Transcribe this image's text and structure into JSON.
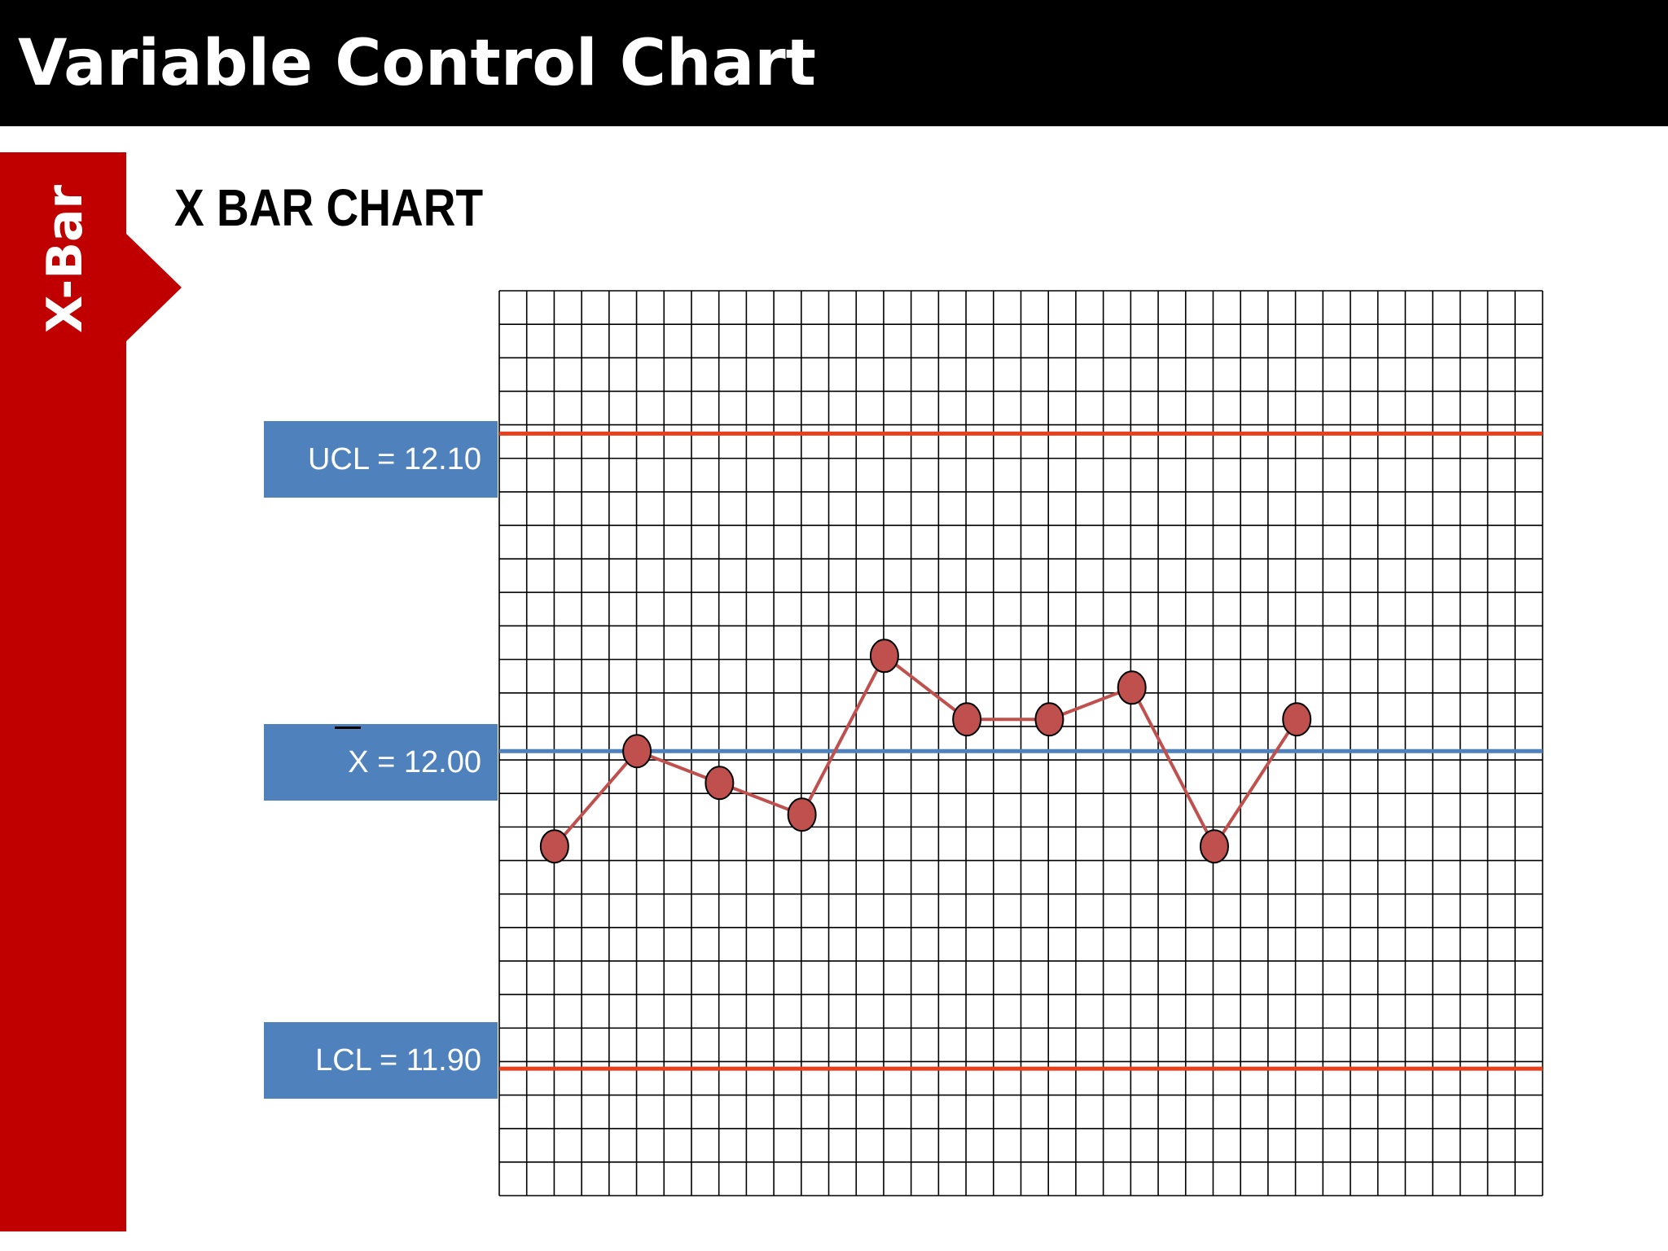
{
  "header": {
    "title": "Variable Control Chart"
  },
  "side_tab": {
    "label": "X-Bar",
    "color": "#c00000"
  },
  "chart_heading": "X BAR CHART",
  "limits": {
    "ucl_label": "UCL = 12.10",
    "center_label": "X = 12.00",
    "lcl_label": "LCL = 11.90",
    "box_color": "#4f81bd"
  },
  "colors": {
    "header_bg": "#000000",
    "control_limit_line": "#e8401c",
    "center_line": "#4f81bd",
    "series_line": "#c0504d",
    "marker_fill": "#c0504d",
    "grid": "#000000"
  },
  "chart_data": {
    "type": "line",
    "title": "X BAR CHART",
    "x": [
      1,
      2,
      3,
      4,
      5,
      6,
      7,
      8,
      9,
      10
    ],
    "series": [
      {
        "values": [
          11.97,
          12.0,
          11.99,
          11.98,
          12.03,
          12.01,
          12.01,
          12.02,
          11.97,
          12.01
        ]
      }
    ],
    "control_limits": {
      "ucl": 12.1,
      "center": 12.0,
      "lcl": 11.9
    },
    "ylim": [
      11.86,
      12.145
    ],
    "xlim": [
      0.33,
      12.98
    ],
    "grid": true,
    "xlabel": "",
    "ylabel": ""
  }
}
